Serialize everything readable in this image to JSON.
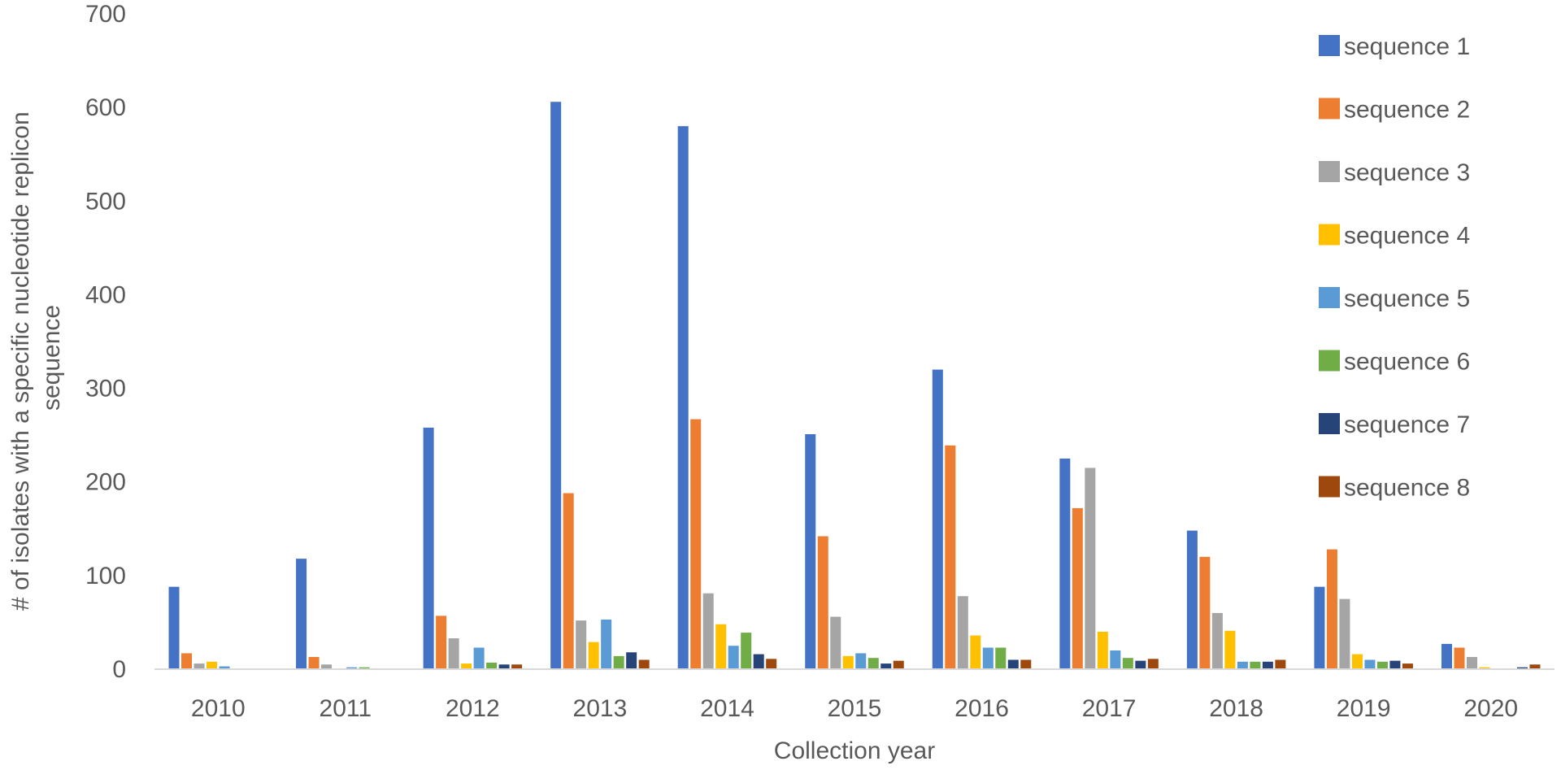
{
  "chart_data": {
    "type": "bar",
    "title": "",
    "xlabel": "Collection year",
    "ylabel_lines": [
      "# of isolates with a specific nucleotide replicon",
      "sequence"
    ],
    "ylim": [
      0,
      700
    ],
    "yticks": [
      0,
      100,
      200,
      300,
      400,
      500,
      600,
      700
    ],
    "grid": false,
    "legend_position": "right",
    "categories": [
      "2010",
      "2011",
      "2012",
      "2013",
      "2014",
      "2015",
      "2016",
      "2017",
      "2018",
      "2019",
      "2020"
    ],
    "series": [
      {
        "name": "sequence 1",
        "color": "#4472C4",
        "values": [
          88,
          118,
          258,
          606,
          580,
          251,
          320,
          225,
          148,
          88,
          27
        ]
      },
      {
        "name": "sequence 2",
        "color": "#ED7D31",
        "values": [
          17,
          13,
          57,
          188,
          267,
          142,
          239,
          172,
          120,
          128,
          23
        ]
      },
      {
        "name": "sequence 3",
        "color": "#A5A5A5",
        "values": [
          6,
          5,
          33,
          52,
          81,
          56,
          78,
          215,
          60,
          75,
          13
        ]
      },
      {
        "name": "sequence 4",
        "color": "#FFC000",
        "values": [
          8,
          0,
          6,
          29,
          48,
          14,
          36,
          40,
          41,
          16,
          2
        ]
      },
      {
        "name": "sequence 5",
        "color": "#5B9BD5",
        "values": [
          3,
          2,
          23,
          53,
          25,
          17,
          23,
          20,
          8,
          10,
          0
        ]
      },
      {
        "name": "sequence 6",
        "color": "#70AD47",
        "values": [
          0,
          2,
          7,
          14,
          39,
          12,
          23,
          12,
          8,
          8,
          0
        ]
      },
      {
        "name": "sequence 7",
        "color": "#264478",
        "values": [
          0,
          0,
          5,
          18,
          16,
          6,
          10,
          9,
          8,
          9,
          2
        ]
      },
      {
        "name": "sequence 8",
        "color": "#9E480E",
        "values": [
          0,
          0,
          5,
          10,
          11,
          9,
          10,
          11,
          10,
          6,
          5
        ]
      }
    ]
  }
}
